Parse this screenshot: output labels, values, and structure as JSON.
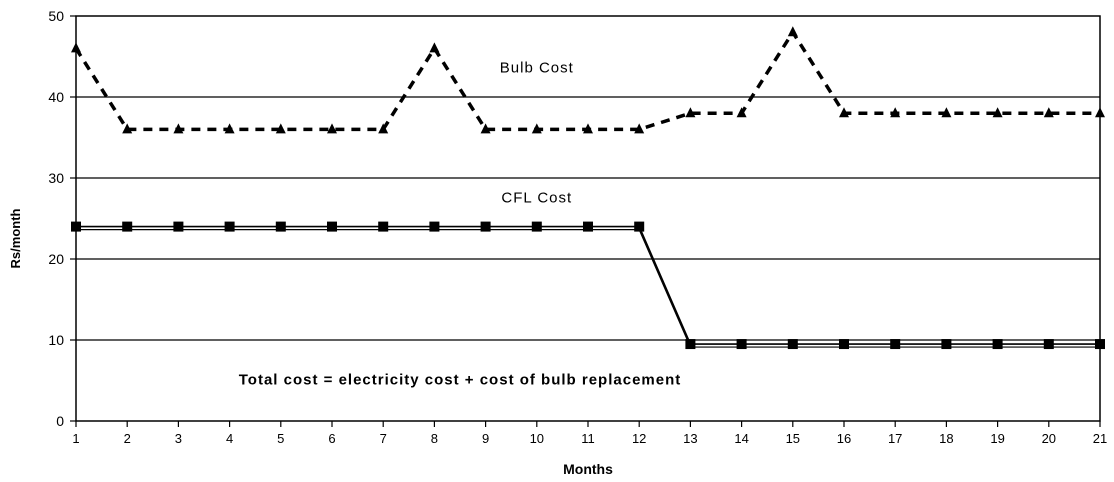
{
  "chart_data": {
    "type": "line",
    "xlabel": "Months",
    "ylabel": "Rs/month",
    "ylim": [
      0,
      50
    ],
    "yticks": [
      0,
      10,
      20,
      30,
      40,
      50
    ],
    "x": [
      1,
      2,
      3,
      4,
      5,
      6,
      7,
      8,
      9,
      10,
      11,
      12,
      13,
      14,
      15,
      16,
      17,
      18,
      19,
      20,
      21
    ],
    "grid": "horizontal",
    "series": [
      {
        "name": "Bulb Cost",
        "marker": "triangle",
        "line_style": "dashed",
        "color": "#000000",
        "values": [
          46,
          36,
          36,
          36,
          36,
          36,
          36,
          46,
          36,
          36,
          36,
          36,
          38,
          38,
          48,
          38,
          38,
          38,
          38,
          38,
          38
        ]
      },
      {
        "name": "CFL Cost",
        "marker": "square",
        "line_style": "solid",
        "color": "#000000",
        "values": [
          24,
          24,
          24,
          24,
          24,
          24,
          24,
          24,
          24,
          24,
          24,
          24,
          9.5,
          9.5,
          9.5,
          9.5,
          9.5,
          9.5,
          9.5,
          9.5,
          9.5
        ]
      }
    ],
    "annotations": [
      {
        "text": "Bulb Cost",
        "x": 10,
        "y": 43
      },
      {
        "text": "CFL Cost",
        "x": 10,
        "y": 27
      },
      {
        "text": "Total cost = electricity cost + cost of bulb replacement",
        "x": 8.5,
        "y": 4.5
      }
    ]
  }
}
